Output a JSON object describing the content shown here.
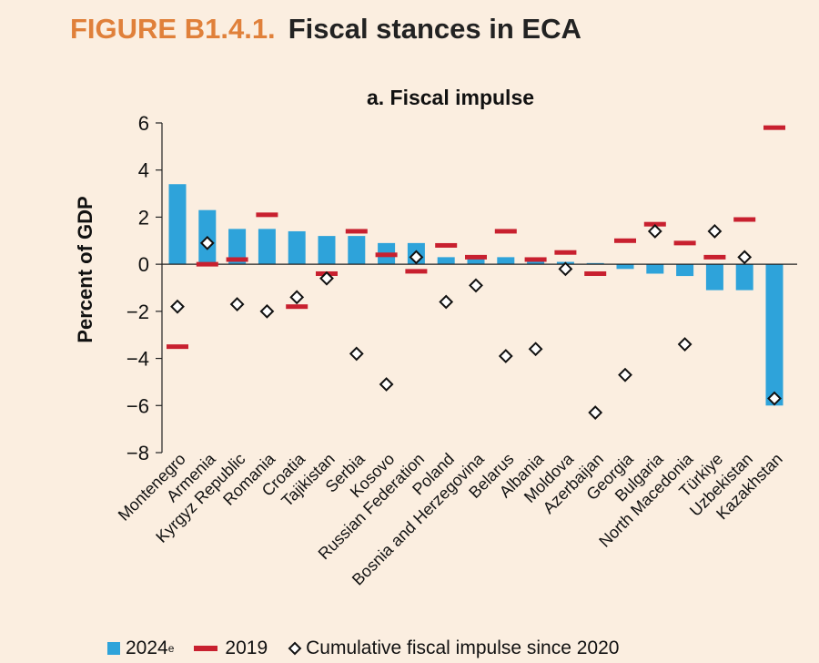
{
  "figure": {
    "label": "FIGURE B1.4.1.",
    "title": "Fiscal stances in ECA"
  },
  "chart_data": {
    "type": "bar",
    "title": "a. Fiscal impulse",
    "xlabel": "",
    "ylabel": "Percent of GDP",
    "ylim": [
      -8,
      6
    ],
    "yticks": [
      6,
      4,
      2,
      0,
      -2,
      -4,
      -6,
      -8
    ],
    "ytick_labels": [
      "6",
      "4",
      "2",
      "0",
      "−2",
      "−4",
      "−6",
      "−8"
    ],
    "categories": [
      "Montenegro",
      "Armenia",
      "Kyrgyz Republic",
      "Romania",
      "Croatia",
      "Tajikistan",
      "Serbia",
      "Kosovo",
      "Russian Federation",
      "Poland",
      "Bosnia and Herzegovina",
      "Belarus",
      "Albania",
      "Moldova",
      "Azerbaijan",
      "Georgia",
      "Bulgaria",
      "North Macedonia",
      "Türkiye",
      "Uzbekistan",
      "Kazakhstan"
    ],
    "series": [
      {
        "name": "2024",
        "superscript": "e",
        "type": "bar",
        "color": "#2ea3da",
        "values": [
          3.4,
          2.3,
          1.5,
          1.5,
          1.4,
          1.2,
          1.2,
          0.9,
          0.9,
          0.3,
          0.3,
          0.3,
          0.2,
          0.1,
          0.05,
          -0.2,
          -0.4,
          -0.5,
          -1.1,
          -1.1,
          -6.0
        ]
      },
      {
        "name": "2019",
        "type": "dash",
        "color": "#c8202f",
        "values": [
          -3.5,
          0.0,
          0.2,
          2.1,
          -1.8,
          -0.4,
          1.4,
          0.4,
          -0.3,
          0.8,
          0.3,
          1.4,
          0.2,
          0.5,
          -0.4,
          1.0,
          1.7,
          0.9,
          0.3,
          1.9,
          5.8
        ]
      },
      {
        "name": "Cumulative fiscal impulse since 2020",
        "type": "diamond",
        "color": "#111111",
        "values": [
          -1.8,
          0.9,
          -1.7,
          -2.0,
          -1.4,
          -0.6,
          -3.8,
          -5.1,
          0.3,
          -1.6,
          -0.9,
          -3.9,
          -3.6,
          -0.2,
          -6.3,
          -4.7,
          1.4,
          -3.4,
          1.4,
          0.3,
          -5.7
        ]
      }
    ],
    "legend_position": "bottom"
  }
}
